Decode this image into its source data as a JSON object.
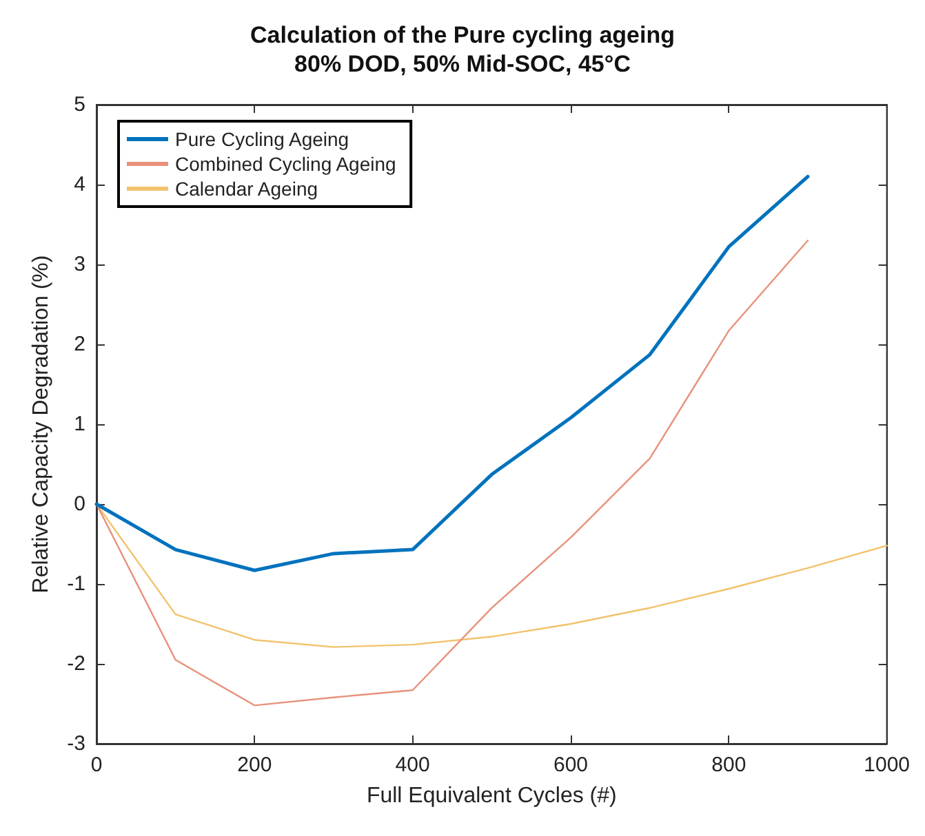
{
  "chart_data": {
    "type": "line",
    "title": "Calculation of the Pure cycling ageing",
    "subtitle": "80% DOD, 50% Mid-SOC, 45°C",
    "xlabel": "Full Equivalent Cycles (#)",
    "ylabel": "Relative Capacity Degradation (%)",
    "xlim": [
      0,
      1000
    ],
    "xticks": [
      0,
      200,
      400,
      600,
      800,
      1000
    ],
    "ylim": [
      -3,
      5
    ],
    "yticks": [
      -3,
      -2,
      -1,
      0,
      1,
      2,
      3,
      4,
      5
    ],
    "grid": false,
    "legend": "top left",
    "marker": "none",
    "series": [
      {
        "name": "Pure Cycling Ageing",
        "color": "#0072bd",
        "x": [
          0,
          100,
          200,
          300,
          400,
          500,
          600,
          700,
          800,
          900
        ],
        "values": [
          0,
          -0.57,
          -0.83,
          -0.62,
          -0.57,
          0.37,
          1.08,
          1.87,
          3.22,
          4.1
        ]
      },
      {
        "name": "Combined Cycling Ageing",
        "color": "#e8917a",
        "x": [
          0,
          100,
          200,
          300,
          400,
          500,
          600,
          700,
          800,
          900
        ],
        "values": [
          0,
          -1.95,
          -2.52,
          -2.42,
          -2.33,
          -1.3,
          -0.42,
          0.57,
          2.17,
          3.3
        ]
      },
      {
        "name": "Calendar Ageing",
        "color": "#f2c26b",
        "x": [
          0,
          100,
          200,
          300,
          400,
          500,
          600,
          700,
          800,
          900,
          1000
        ],
        "values": [
          0,
          -1.38,
          -1.7,
          -1.79,
          -1.76,
          -1.66,
          -1.5,
          -1.3,
          -1.06,
          -0.8,
          -0.52
        ]
      }
    ]
  }
}
